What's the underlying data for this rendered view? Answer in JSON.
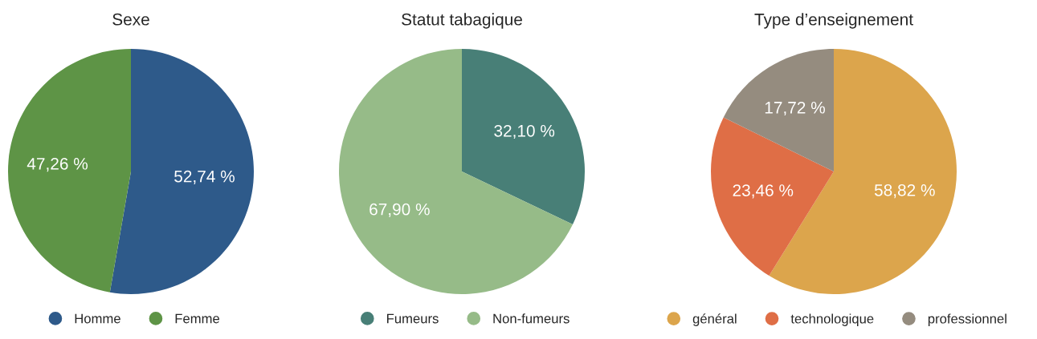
{
  "chart_data": [
    {
      "type": "pie",
      "title": "Sexe",
      "categories": [
        "Homme",
        "Femme"
      ],
      "values": [
        52.74,
        47.26
      ],
      "colors": [
        "#2e5a8a",
        "#5e9446"
      ],
      "value_labels": [
        "52,74 %",
        "47,26 %"
      ],
      "legend": "bottom"
    },
    {
      "type": "pie",
      "title": "Statut tabagique",
      "categories": [
        "Fumeurs",
        "Non-fumeurs"
      ],
      "values": [
        32.1,
        67.9
      ],
      "colors": [
        "#487f77",
        "#96bb88"
      ],
      "value_labels": [
        "32,10 %",
        "67,90 %"
      ],
      "legend": "bottom"
    },
    {
      "type": "pie",
      "title": "Type d’enseignement",
      "categories": [
        "général",
        "technologique",
        "professionnel"
      ],
      "values": [
        58.82,
        23.46,
        17.72
      ],
      "colors": [
        "#dca54c",
        "#df6e46",
        "#958c7f"
      ],
      "value_labels": [
        "58,82 %",
        "23,46 %",
        "17,72 %"
      ],
      "legend": "bottom"
    }
  ]
}
